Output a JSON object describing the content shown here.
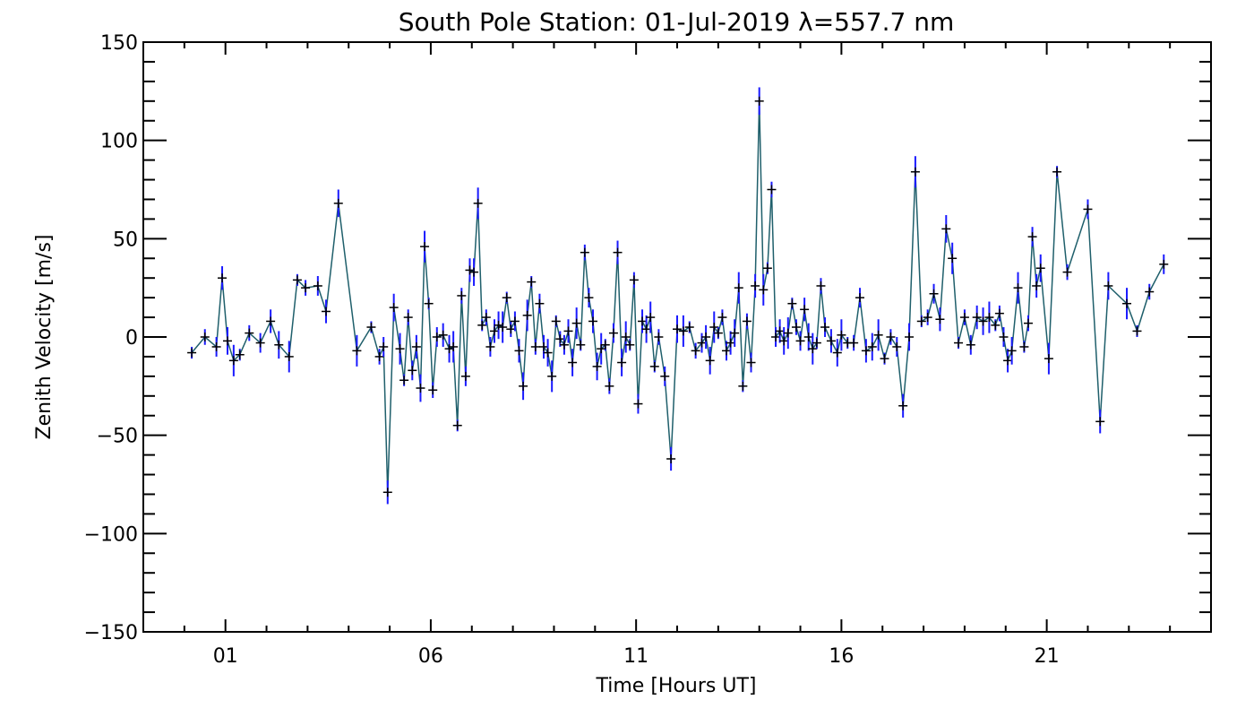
{
  "chart_data": {
    "type": "scatter",
    "title": "South Pole Station: 01-Jul-2019 λ=557.7 nm",
    "xlabel": "Time [Hours UT]",
    "ylabel": "Zenith Velocity [m/s]",
    "xlim": [
      -1.0,
      25.0
    ],
    "ylim": [
      -150,
      150
    ],
    "x_ticks": [
      1,
      6,
      11,
      16,
      21
    ],
    "x_tick_labels": [
      "01",
      "06",
      "11",
      "16",
      "21"
    ],
    "y_ticks": [
      -150,
      -100,
      -50,
      0,
      50,
      100,
      150
    ],
    "y_tick_labels": [
      "−150",
      "−100",
      "−50",
      "0",
      "50",
      "100",
      "150"
    ],
    "grid": false,
    "colors": {
      "line": "#1f5f6b",
      "errorbar": "#1a1aff",
      "marker": "#000000",
      "axis": "#000000"
    },
    "series": [
      {
        "name": "Zenith Velocity",
        "x": [
          0.18,
          0.5,
          0.78,
          0.92,
          1.05,
          1.2,
          1.35,
          1.58,
          1.85,
          2.1,
          2.3,
          2.55,
          2.75,
          2.95,
          3.25,
          3.45,
          3.75,
          4.2,
          4.55,
          4.75,
          4.85,
          4.95,
          5.1,
          5.25,
          5.35,
          5.45,
          5.55,
          5.65,
          5.75,
          5.85,
          5.95,
          6.05,
          6.15,
          6.3,
          6.45,
          6.55,
          6.65,
          6.75,
          6.85,
          6.95,
          7.05,
          7.15,
          7.25,
          7.35,
          7.45,
          7.55,
          7.65,
          7.75,
          7.85,
          7.95,
          8.05,
          8.15,
          8.25,
          8.35,
          8.45,
          8.55,
          8.65,
          8.75,
          8.85,
          8.95,
          9.05,
          9.15,
          9.25,
          9.35,
          9.45,
          9.55,
          9.65,
          9.75,
          9.85,
          9.95,
          10.05,
          10.15,
          10.25,
          10.35,
          10.45,
          10.55,
          10.65,
          10.75,
          10.85,
          10.95,
          11.05,
          11.15,
          11.25,
          11.35,
          11.45,
          11.55,
          11.7,
          11.85,
          12.0,
          12.15,
          12.3,
          12.45,
          12.6,
          12.7,
          12.8,
          12.9,
          13.0,
          13.1,
          13.2,
          13.3,
          13.4,
          13.5,
          13.6,
          13.7,
          13.8,
          13.9,
          14.0,
          14.1,
          14.2,
          14.3,
          14.4,
          14.5,
          14.6,
          14.7,
          14.8,
          14.9,
          15.0,
          15.1,
          15.2,
          15.3,
          15.4,
          15.5,
          15.6,
          15.75,
          15.9,
          16.0,
          16.15,
          16.3,
          16.45,
          16.6,
          16.75,
          16.9,
          17.05,
          17.2,
          17.35,
          17.5,
          17.65,
          17.8,
          17.95,
          18.1,
          18.25,
          18.4,
          18.55,
          18.7,
          18.85,
          19.0,
          19.15,
          19.3,
          19.45,
          19.6,
          19.75,
          19.85,
          19.95,
          20.05,
          20.15,
          20.3,
          20.45,
          20.55,
          20.65,
          20.75,
          20.85,
          21.05,
          21.25,
          21.5,
          22.0,
          22.3,
          22.5,
          22.95,
          23.2,
          23.5,
          23.85
        ]
      }
    ]
  }
}
